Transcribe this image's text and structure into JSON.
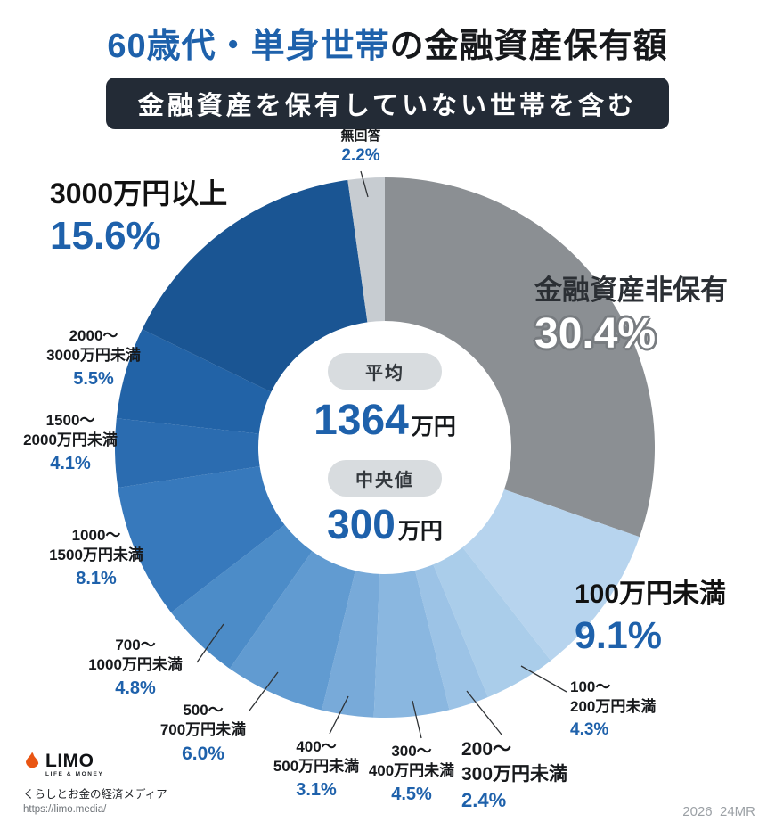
{
  "title": {
    "highlight": "60歳代・単身世帯",
    "rest": "の金融資産保有額"
  },
  "subtitle": "金融資産を保有していない世帯を含む",
  "center": {
    "average_label": "平均",
    "average_value": "1364",
    "average_unit": "万円",
    "median_label": "中央値",
    "median_value": "300",
    "median_unit": "万円"
  },
  "callouts": {
    "no_answer": {
      "label": "無回答",
      "pct": "2.2%"
    },
    "none": {
      "label": "金融資産非保有",
      "pct": "30.4%"
    },
    "under100": {
      "label": "100万円未満",
      "pct": "9.1%"
    },
    "r100_200": {
      "label": "100〜\n200万円未満",
      "pct": "4.3%"
    },
    "r200_300": {
      "label": "200〜\n300万円未満",
      "pct": "2.4%"
    },
    "r300_400": {
      "label": "300〜\n400万円未満",
      "pct": "4.5%"
    },
    "r400_500": {
      "label": "400〜\n500万円未満",
      "pct": "3.1%"
    },
    "r500_700": {
      "label": "500〜\n700万円未満",
      "pct": "6.0%"
    },
    "r700_1000": {
      "label": "700〜\n1000万円未満",
      "pct": "4.8%"
    },
    "r1000_1500": {
      "label": "1000〜\n1500万円未満",
      "pct": "8.1%"
    },
    "r1500_2000": {
      "label": "1500〜\n2000万円未満",
      "pct": "4.1%"
    },
    "r2000_3000": {
      "label": "2000〜\n3000万円未満",
      "pct": "5.5%"
    },
    "over3000": {
      "label": "3000万円以上",
      "pct": "15.6%"
    }
  },
  "footer": {
    "logo": "LIMO",
    "logo_sub": "LIFE & MONEY",
    "tagline": "くらしとお金の経済メディア",
    "url": "https://limo.media/",
    "ref": "2026_24MR"
  },
  "chart_data": {
    "type": "pie",
    "donut": true,
    "title": "60歳代・単身世帯の金融資産保有額",
    "subtitle": "金融資産を保有していない世帯を含む",
    "unit": "%",
    "direction": "clockwise",
    "start_angle_deg": 0,
    "average": "1364万円",
    "median": "300万円",
    "segments": [
      {
        "key": "none",
        "label": "金融資産非保有",
        "value": 30.4,
        "color": "#8b8f93"
      },
      {
        "key": "under100",
        "label": "100万円未満",
        "value": 9.1,
        "color": "#b7d4ee"
      },
      {
        "key": "r100_200",
        "label": "100〜200万円未満",
        "value": 4.3,
        "color": "#aacdea"
      },
      {
        "key": "r200_300",
        "label": "200〜300万円未満",
        "value": 2.4,
        "color": "#9cc3e6"
      },
      {
        "key": "r300_400",
        "label": "300〜400万円未満",
        "value": 4.5,
        "color": "#8ab7e0"
      },
      {
        "key": "r400_500",
        "label": "400〜500万円未満",
        "value": 3.1,
        "color": "#78aad9"
      },
      {
        "key": "r500_700",
        "label": "500〜700万円未満",
        "value": 6.0,
        "color": "#619bd1"
      },
      {
        "key": "r700_1000",
        "label": "700〜1000万円未満",
        "value": 4.8,
        "color": "#4c8cc8"
      },
      {
        "key": "r1000_1500",
        "label": "1000〜1500万円未満",
        "value": 8.1,
        "color": "#3779bc"
      },
      {
        "key": "r1500_2000",
        "label": "1500〜2000万円未満",
        "value": 4.1,
        "color": "#2b6cb0"
      },
      {
        "key": "r2000_3000",
        "label": "2000〜3000万円未満",
        "value": 5.5,
        "color": "#2263a7"
      },
      {
        "key": "over3000",
        "label": "3000万円以上",
        "value": 15.6,
        "color": "#1a5593"
      },
      {
        "key": "no_answer",
        "label": "無回答",
        "value": 2.2,
        "color": "#c7ccd1"
      }
    ]
  }
}
